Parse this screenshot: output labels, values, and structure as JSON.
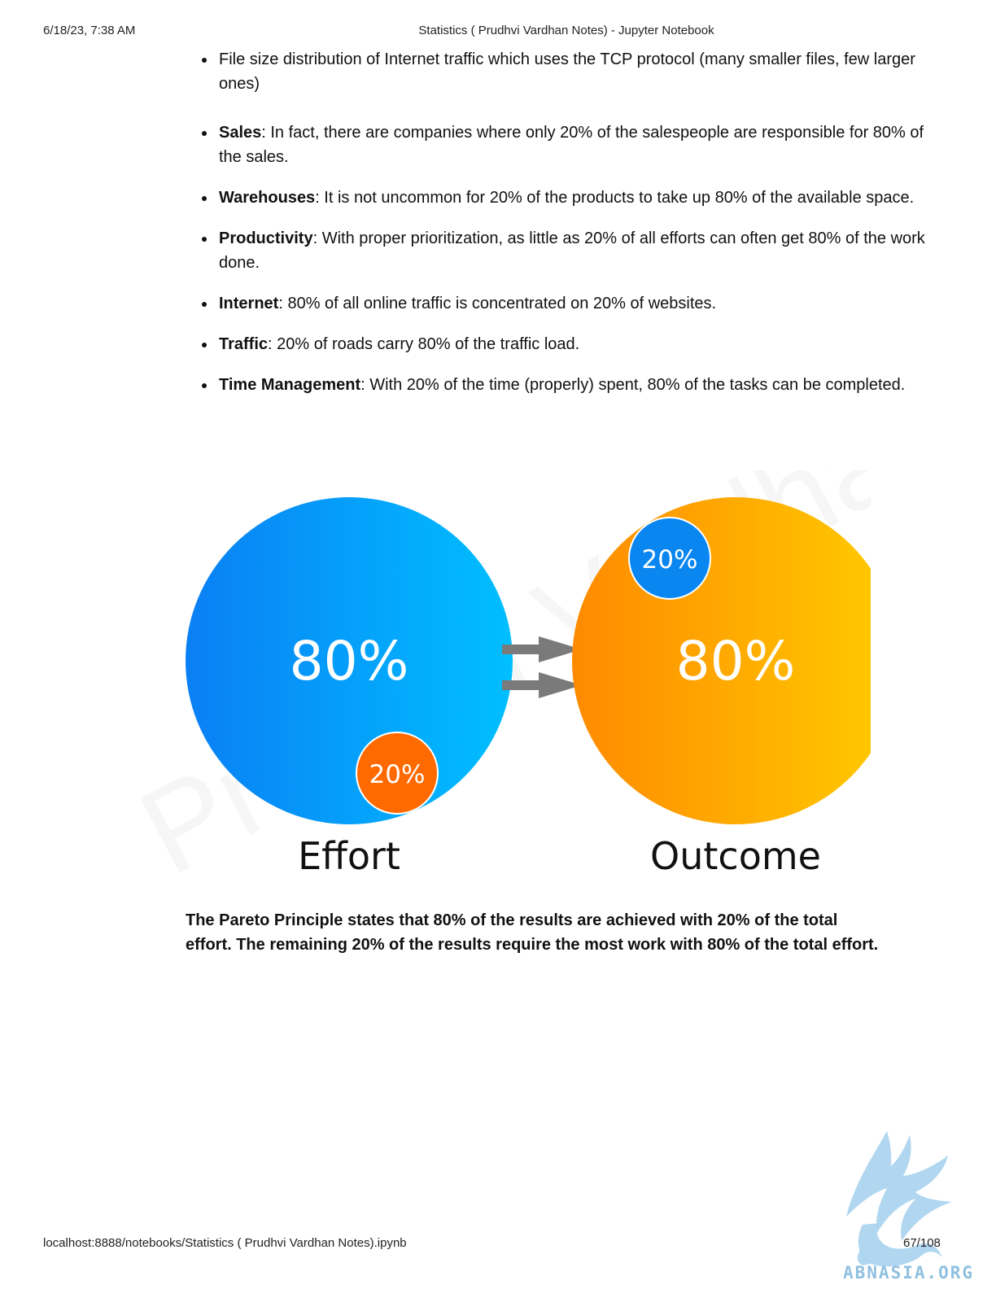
{
  "header": {
    "datetime": "6/18/23, 7:38 AM",
    "title": "Statistics ( Prudhvi Vardhan Notes) - Jupyter Notebook"
  },
  "bullets": [
    {
      "term": "",
      "text": "File size distribution of Internet traffic which uses the TCP protocol (many smaller files, few larger ones)"
    },
    {
      "term": "Sales",
      "text": ": In fact, there are companies where only 20% of the salespeople are responsible for 80% of the sales."
    },
    {
      "term": "Warehouses",
      "text": ": It is not uncommon for 20% of the products to take up 80% of the available space."
    },
    {
      "term": "Productivity",
      "text": ": With proper prioritization, as little as 20% of all efforts can often get 80% of the work done."
    },
    {
      "term": "Internet",
      "text": ": 80% of all online traffic is concentrated on 20% of websites."
    },
    {
      "term": "Traffic",
      "text": ": 20% of roads carry 80% of the traffic load."
    },
    {
      "term": "Time Management",
      "text": ": With 20% of the time (properly) spent, 80% of the tasks can be completed."
    }
  ],
  "figure": {
    "effort": {
      "label": "Effort",
      "big": "80%",
      "small": "20%"
    },
    "outcome": {
      "label": "Outcome",
      "big": "80%",
      "small": "20%"
    },
    "colors": {
      "blue_start": "#0a7ff5",
      "blue_end": "#00bfff",
      "orange_start": "#ff8a00",
      "orange_end": "#ffcc00",
      "small_orange": "#ff6a00",
      "small_blue": "#0a86f0",
      "arrow": "#7a7a7a"
    },
    "watermark": "Prudhvi Vardhan"
  },
  "summary": "The Pareto Principle states that 80% of the results are achieved with 20% of the total effort. The remaining 20% of the results require the most work with 80% of the total effort.",
  "footer": {
    "url": "localhost:8888/notebooks/Statistics ( Prudhvi Vardhan Notes).ipynb",
    "page": "67/108"
  },
  "logo": {
    "text": "ABNASIA.ORG",
    "color": "#8fc0e0"
  }
}
